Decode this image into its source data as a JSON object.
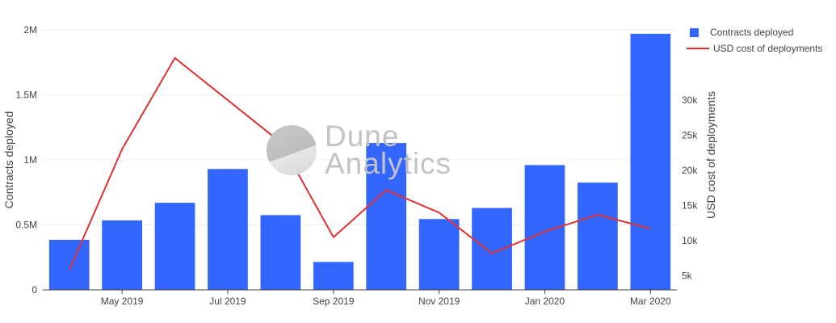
{
  "chart_data": {
    "type": "bar",
    "categories": [
      "Apr 2019",
      "May 2019",
      "Jun 2019",
      "Jul 2019",
      "Aug 2019",
      "Sep 2019",
      "Oct 2019",
      "Nov 2019",
      "Dec 2019",
      "Jan 2020",
      "Feb 2020",
      "Mar 2020"
    ],
    "x_tick_labels": [
      "May 2019",
      "Jul 2019",
      "Sep 2019",
      "Nov 2019",
      "Jan 2020",
      "Mar 2020"
    ],
    "series": [
      {
        "name": "Contracts deployed",
        "type": "bar",
        "axis": "left",
        "color": "#3366ff",
        "values": [
          385000,
          535000,
          670000,
          930000,
          575000,
          215000,
          1130000,
          545000,
          630000,
          960000,
          825000,
          1970000
        ]
      },
      {
        "name": "USD cost of deployments",
        "type": "line",
        "axis": "right",
        "color": "#e03131",
        "values": [
          5800,
          23000,
          36000,
          30000,
          24000,
          10500,
          17200,
          14000,
          8200,
          11300,
          13700,
          11700
        ]
      }
    ],
    "left_axis": {
      "label": "Contracts deployed",
      "range": [
        0,
        2000000
      ],
      "ticks": [
        {
          "v": 0,
          "t": "0"
        },
        {
          "v": 500000,
          "t": "0.5M"
        },
        {
          "v": 1000000,
          "t": "1M"
        },
        {
          "v": 1500000,
          "t": "1.5M"
        },
        {
          "v": 2000000,
          "t": "2M"
        }
      ]
    },
    "right_axis": {
      "label": "USD cost of deployments",
      "range": [
        3000,
        40000
      ],
      "ticks": [
        {
          "v": 5000,
          "t": "5k"
        },
        {
          "v": 10000,
          "t": "10k"
        },
        {
          "v": 15000,
          "t": "15k"
        },
        {
          "v": 20000,
          "t": "20k"
        },
        {
          "v": 25000,
          "t": "25k"
        },
        {
          "v": 30000,
          "t": "30k"
        }
      ]
    },
    "grid": true,
    "legend_position": "top-right"
  },
  "legend": {
    "bar_label": "Contracts deployed",
    "line_label": "USD cost of deployments"
  },
  "watermark": {
    "line1": "Dune",
    "line2": "Analytics"
  }
}
